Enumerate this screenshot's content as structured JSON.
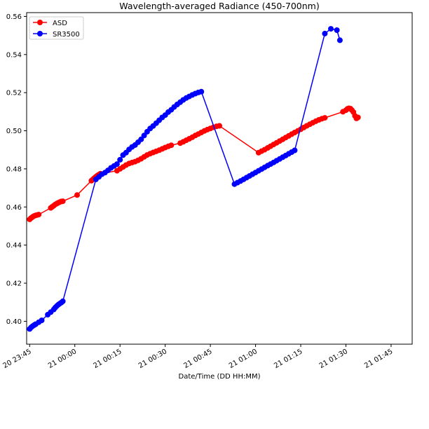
{
  "chart_data": {
    "type": "line",
    "title": "Wavelength-averaged Radiance (450-700nm)",
    "xlabel": "Date/Time (DD HH:MM)",
    "ylabel": "",
    "x_ticks": [
      "20 23:45",
      "21 00:00",
      "21 00:15",
      "21 00:30",
      "21 00:45",
      "21 01:00",
      "21 01:15",
      "21 01:30",
      "21 01:45"
    ],
    "y_ticks": [
      "0.40",
      "0.42",
      "0.44",
      "0.46",
      "0.48",
      "0.50",
      "0.52",
      "0.54",
      "0.56"
    ],
    "xlim": [
      "20 23:45",
      "21 01:52"
    ],
    "ylim": [
      0.388,
      0.562
    ],
    "legend_position": "top-left",
    "grid": false,
    "series": [
      {
        "name": "ASD",
        "color": "#ff0000",
        "points": [
          [
            "20 23:45:00",
            0.4535
          ],
          [
            "20 23:45:30",
            0.4542
          ],
          [
            "20 23:46:00",
            0.4548
          ],
          [
            "20 23:46:30",
            0.4553
          ],
          [
            "20 23:47:00",
            0.4556
          ],
          [
            "20 23:47:30",
            0.4558
          ],
          [
            "20 23:48:00",
            0.456
          ],
          [
            "20 23:52:00",
            0.4595
          ],
          [
            "20 23:52:30",
            0.4601
          ],
          [
            "20 23:53:00",
            0.4607
          ],
          [
            "20 23:53:30",
            0.4613
          ],
          [
            "20 23:54:00",
            0.4618
          ],
          [
            "20 23:54:30",
            0.4622
          ],
          [
            "20 23:55:00",
            0.4626
          ],
          [
            "20 23:55:30",
            0.4629
          ],
          [
            "20 23:56:00",
            0.463
          ],
          [
            "21 00:00:45",
            0.4663
          ],
          [
            "21 00:05:30",
            0.4738
          ],
          [
            "21 00:06:00",
            0.4745
          ],
          [
            "21 00:06:30",
            0.4752
          ],
          [
            "21 00:07:00",
            0.4759
          ],
          [
            "21 00:07:30",
            0.4765
          ],
          [
            "21 00:08:00",
            0.477
          ],
          [
            "21 00:08:30",
            0.4775
          ],
          [
            "21 00:14",
            0.479
          ],
          [
            "21 00:15",
            0.48
          ],
          [
            "21 00:16",
            0.481
          ],
          [
            "21 00:17",
            0.482
          ],
          [
            "21 00:18",
            0.4828
          ],
          [
            "21 00:19",
            0.4833
          ],
          [
            "21 00:20",
            0.4838
          ],
          [
            "21 00:21",
            0.4845
          ],
          [
            "21 00:22",
            0.4853
          ],
          [
            "21 00:23",
            0.4863
          ],
          [
            "21 00:24",
            0.4873
          ],
          [
            "21 00:25",
            0.488
          ],
          [
            "21 00:26",
            0.4886
          ],
          [
            "21 00:27",
            0.4892
          ],
          [
            "21 00:28",
            0.4898
          ],
          [
            "21 00:29",
            0.4905
          ],
          [
            "21 00:30",
            0.4912
          ],
          [
            "21 00:31",
            0.4918
          ],
          [
            "21 00:32",
            0.4924
          ],
          [
            "21 00:35",
            0.4935
          ],
          [
            "21 00:36",
            0.4942
          ],
          [
            "21 00:37",
            0.495
          ],
          [
            "21 00:38",
            0.4958
          ],
          [
            "21 00:39",
            0.4966
          ],
          [
            "21 00:40",
            0.4975
          ],
          [
            "21 00:41",
            0.4983
          ],
          [
            "21 00:42",
            0.4991
          ],
          [
            "21 00:43",
            0.4999
          ],
          [
            "21 00:44",
            0.5006
          ],
          [
            "21 00:45",
            0.5012
          ],
          [
            "21 00:46",
            0.5018
          ],
          [
            "21 00:47",
            0.5023
          ],
          [
            "21 00:48",
            0.5026
          ],
          [
            "21 01:01",
            0.4885
          ],
          [
            "21 01:02",
            0.4893
          ],
          [
            "21 01:03",
            0.4901
          ],
          [
            "21 01:04",
            0.491
          ],
          [
            "21 01:05",
            0.4919
          ],
          [
            "21 01:06",
            0.4928
          ],
          [
            "21 01:07",
            0.4937
          ],
          [
            "21 01:08",
            0.4946
          ],
          [
            "21 01:09",
            0.4955
          ],
          [
            "21 01:10",
            0.4964
          ],
          [
            "21 01:11",
            0.4973
          ],
          [
            "21 01:12",
            0.4982
          ],
          [
            "21 01:13",
            0.4991
          ],
          [
            "21 01:14",
            0.4999
          ],
          [
            "21 01:15",
            0.5008
          ],
          [
            "21 01:16",
            0.5017
          ],
          [
            "21 01:17",
            0.5026
          ],
          [
            "21 01:18",
            0.5034
          ],
          [
            "21 01:19",
            0.5042
          ],
          [
            "21 01:20",
            0.505
          ],
          [
            "21 01:21",
            0.5057
          ],
          [
            "21 01:22",
            0.5063
          ],
          [
            "21 01:23",
            0.5068
          ],
          [
            "21 01:29",
            0.51
          ],
          [
            "21 01:30",
            0.5108
          ],
          [
            "21 01:30:30",
            0.5115
          ],
          [
            "21 01:31",
            0.5118
          ],
          [
            "21 01:31:30",
            0.5116
          ],
          [
            "21 01:32",
            0.5108
          ],
          [
            "21 01:32:30",
            0.5098
          ],
          [
            "21 01:33",
            0.5078
          ],
          [
            "21 01:33:30",
            0.5065
          ],
          [
            "21 01:34",
            0.507
          ]
        ]
      },
      {
        "name": "SR3500",
        "color": "#0000ff",
        "points": [
          [
            "20 23:45:00",
            0.396
          ],
          [
            "20 23:45:30",
            0.3968
          ],
          [
            "20 23:46:00",
            0.3975
          ],
          [
            "20 23:46:30",
            0.398
          ],
          [
            "20 23:47:00",
            0.3985
          ],
          [
            "20 23:48:00",
            0.3995
          ],
          [
            "20 23:49:00",
            0.4005
          ],
          [
            "20 23:51:00",
            0.4035
          ],
          [
            "20 23:52:00",
            0.4048
          ],
          [
            "20 23:53:00",
            0.4062
          ],
          [
            "20 23:53:30",
            0.4072
          ],
          [
            "20 23:54:00",
            0.408
          ],
          [
            "20 23:54:30",
            0.4087
          ],
          [
            "20 23:55:00",
            0.4093
          ],
          [
            "20 23:55:30",
            0.4098
          ],
          [
            "20 23:56:00",
            0.4105
          ],
          [
            "21 00:07",
            0.4745
          ],
          [
            "21 00:08",
            0.4758
          ],
          [
            "21 00:09",
            0.4772
          ],
          [
            "21 00:10",
            0.478
          ],
          [
            "21 00:11",
            0.4792
          ],
          [
            "21 00:12",
            0.4805
          ],
          [
            "21 00:13",
            0.4815
          ],
          [
            "21 00:14",
            0.4825
          ],
          [
            "21 00:15",
            0.4848
          ],
          [
            "21 00:16",
            0.4872
          ],
          [
            "21 00:17",
            0.4885
          ],
          [
            "21 00:18",
            0.4902
          ],
          [
            "21 00:19",
            0.4915
          ],
          [
            "21 00:20",
            0.4925
          ],
          [
            "21 00:21",
            0.494
          ],
          [
            "21 00:22",
            0.4955
          ],
          [
            "21 00:23",
            0.4975
          ],
          [
            "21 00:24",
            0.4995
          ],
          [
            "21 00:25",
            0.5012
          ],
          [
            "21 00:26",
            0.5025
          ],
          [
            "21 00:27",
            0.504
          ],
          [
            "21 00:28",
            0.5055
          ],
          [
            "21 00:29",
            0.507
          ],
          [
            "21 00:30",
            0.5082
          ],
          [
            "21 00:31",
            0.5098
          ],
          [
            "21 00:32",
            0.511
          ],
          [
            "21 00:33",
            0.5125
          ],
          [
            "21 00:34",
            0.5138
          ],
          [
            "21 00:35",
            0.515
          ],
          [
            "21 00:36",
            0.5162
          ],
          [
            "21 00:37",
            0.5172
          ],
          [
            "21 00:38",
            0.518
          ],
          [
            "21 00:39",
            0.5188
          ],
          [
            "21 00:40",
            0.5195
          ],
          [
            "21 00:41",
            0.5201
          ],
          [
            "21 00:42",
            0.5205
          ],
          [
            "21 00:53",
            0.472
          ],
          [
            "21 00:54",
            0.4728
          ],
          [
            "21 00:55",
            0.4736
          ],
          [
            "21 00:56",
            0.4745
          ],
          [
            "21 00:57",
            0.4754
          ],
          [
            "21 00:58",
            0.4763
          ],
          [
            "21 00:59",
            0.4772
          ],
          [
            "21 01:00",
            0.4781
          ],
          [
            "21 01:01",
            0.479
          ],
          [
            "21 01:02",
            0.4799
          ],
          [
            "21 01:03",
            0.4808
          ],
          [
            "21 01:04",
            0.4817
          ],
          [
            "21 01:05",
            0.4825
          ],
          [
            "21 01:06",
            0.4834
          ],
          [
            "21 01:07",
            0.4843
          ],
          [
            "21 01:08",
            0.4852
          ],
          [
            "21 01:09",
            0.4861
          ],
          [
            "21 01:10",
            0.487
          ],
          [
            "21 01:11",
            0.4879
          ],
          [
            "21 01:12",
            0.4888
          ],
          [
            "21 01:13",
            0.4897
          ],
          [
            "21 01:23",
            0.551
          ],
          [
            "21 01:25",
            0.5535
          ],
          [
            "21 01:27",
            0.5528
          ],
          [
            "21 01:28",
            0.5475
          ]
        ]
      }
    ]
  }
}
